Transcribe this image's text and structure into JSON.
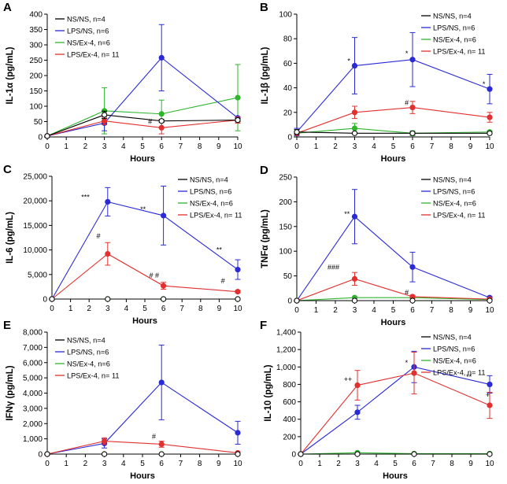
{
  "figure": {
    "x_values": [
      0,
      3,
      6,
      10
    ],
    "series_colors": [
      "#000000",
      "#2a2ad6",
      "#2db52d",
      "#e23030"
    ],
    "marker_fills": [
      "#ffffff",
      "#2a2ad6",
      "#2db52d",
      "#e23030"
    ]
  },
  "chart_data": [
    {
      "type": "line",
      "panel": "A",
      "ylabel": "IL-1α (pg/mL)",
      "xlabel": "Hours",
      "ylim": [
        0,
        400
      ],
      "yticks": [
        0,
        50,
        100,
        150,
        200,
        250,
        300,
        350,
        400
      ],
      "ytick_labels": [
        "0",
        "50",
        "100",
        "150",
        "200",
        "250",
        "300",
        "350",
        "400"
      ],
      "xticks": [
        0,
        1,
        2,
        3,
        4,
        5,
        6,
        7,
        8,
        9,
        10
      ],
      "x": [
        0,
        3,
        6,
        10
      ],
      "series": [
        {
          "name": "NS/NS, n=4",
          "values": [
            3,
            72,
            52,
            55
          ],
          "err": [
            0,
            12,
            5,
            6
          ]
        },
        {
          "name": "LPS/NS, n=6",
          "values": [
            3,
            45,
            258,
            62
          ],
          "err": [
            0,
            25,
            108,
            0
          ]
        },
        {
          "name": "NS/Ex-4, n=6",
          "values": [
            3,
            85,
            75,
            128
          ],
          "err": [
            0,
            75,
            45,
            108
          ]
        },
        {
          "name": "LPS/Ex-4, n= 11",
          "values": [
            3,
            52,
            30,
            55
          ],
          "err": [
            0,
            12,
            20,
            10
          ]
        }
      ],
      "annotations": [
        {
          "text": "#",
          "x": 5.4,
          "y": 42
        }
      ]
    },
    {
      "type": "line",
      "panel": "B",
      "ylabel": "IL-1β (pg/mL)",
      "xlabel": "Hours",
      "ylim": [
        0,
        100
      ],
      "yticks": [
        0,
        20,
        40,
        60,
        80,
        100
      ],
      "ytick_labels": [
        "0",
        "20",
        "40",
        "60",
        "80",
        "100"
      ],
      "xticks": [
        0,
        1,
        2,
        3,
        4,
        5,
        6,
        7,
        8,
        9,
        10
      ],
      "x": [
        0,
        3,
        6,
        10
      ],
      "series": [
        {
          "name": "NS/NS, n=4",
          "values": [
            4,
            3,
            3,
            3
          ],
          "err": [
            2,
            0,
            1,
            0
          ]
        },
        {
          "name": "LPS/NS, n=6",
          "values": [
            4,
            58,
            63,
            39
          ],
          "err": [
            3,
            23,
            22,
            12
          ]
        },
        {
          "name": "NS/Ex-4, n=6",
          "values": [
            3,
            7,
            3,
            4
          ],
          "err": [
            0,
            4,
            2,
            1
          ]
        },
        {
          "name": "LPS/Ex-4, n= 11",
          "values": [
            3,
            20,
            24,
            16
          ],
          "err": [
            0,
            5,
            5,
            4
          ]
        }
      ],
      "annotations": [
        {
          "text": "*",
          "x": 2.7,
          "y": 60
        },
        {
          "text": "*",
          "x": 5.7,
          "y": 66
        },
        {
          "text": "*",
          "x": 9.7,
          "y": 41
        },
        {
          "text": "#",
          "x": 5.7,
          "y": 26
        }
      ]
    },
    {
      "type": "line",
      "panel": "C",
      "ylabel": "IL-6 (pg/mL)",
      "xlabel": "Hours",
      "ylim": [
        0,
        25000
      ],
      "yticks": [
        0,
        5000,
        10000,
        15000,
        20000,
        25000
      ],
      "ytick_labels": [
        "0",
        "5,000",
        "10,000",
        "15,000",
        "20,000",
        "25,000"
      ],
      "xticks": [
        0,
        1,
        2,
        3,
        4,
        5,
        6,
        7,
        8,
        9,
        10
      ],
      "x": [
        0,
        3,
        6,
        10
      ],
      "series": [
        {
          "name": "NS/NS, n=4",
          "values": [
            0,
            0,
            0,
            0
          ],
          "err": [
            0,
            0,
            0,
            0
          ]
        },
        {
          "name": "LPS/NS, n=6",
          "values": [
            0,
            19800,
            17000,
            6000
          ],
          "err": [
            0,
            2900,
            6000,
            2000
          ]
        },
        {
          "name": "NS/Ex-4, n=6",
          "values": [
            0,
            0,
            0,
            0
          ],
          "err": [
            0,
            0,
            0,
            0
          ]
        },
        {
          "name": "LPS/Ex-4, n= 11",
          "values": [
            0,
            9200,
            2700,
            1500
          ],
          "err": [
            0,
            2300,
            700,
            250
          ]
        }
      ],
      "annotations": [
        {
          "text": "***",
          "x": 1.8,
          "y": 20300
        },
        {
          "text": "**",
          "x": 4.9,
          "y": 17800
        },
        {
          "text": "**",
          "x": 9.0,
          "y": 9500
        },
        {
          "text": "#",
          "x": 2.5,
          "y": 12300
        },
        {
          "text": "# #",
          "x": 5.5,
          "y": 4300
        },
        {
          "text": "#",
          "x": 9.2,
          "y": 3200
        }
      ]
    },
    {
      "type": "line",
      "panel": "D",
      "ylabel": "TNFα (pg/mL)",
      "xlabel": "Hours",
      "ylim": [
        0,
        250
      ],
      "yticks": [
        0,
        50,
        100,
        150,
        200,
        250
      ],
      "ytick_labels": [
        "0",
        "50",
        "100",
        "150",
        "200",
        "250"
      ],
      "xticks": [
        0,
        1,
        2,
        3,
        4,
        5,
        6,
        7,
        8,
        9,
        10
      ],
      "x": [
        0,
        3,
        6,
        10
      ],
      "series": [
        {
          "name": "NS/NS, n=4",
          "values": [
            0,
            0,
            0,
            0
          ],
          "err": [
            0,
            0,
            0,
            0
          ]
        },
        {
          "name": "LPS/NS, n=6",
          "values": [
            0,
            170,
            68,
            6
          ],
          "err": [
            0,
            55,
            30,
            2
          ]
        },
        {
          "name": "NS/Ex-4, n=6",
          "values": [
            0,
            6,
            6,
            2
          ],
          "err": [
            0,
            2,
            2,
            1
          ]
        },
        {
          "name": "LPS/Ex-4, n= 11",
          "values": [
            0,
            44,
            8,
            3
          ],
          "err": [
            0,
            13,
            3,
            1
          ]
        }
      ],
      "annotations": [
        {
          "text": "**",
          "x": 2.6,
          "y": 170
        },
        {
          "text": "###",
          "x": 1.9,
          "y": 63
        },
        {
          "text": "#",
          "x": 5.7,
          "y": 12
        }
      ]
    },
    {
      "type": "line",
      "panel": "E",
      "ylabel": "IFNγ (pg/mL)",
      "xlabel": "Hours",
      "ylim": [
        0,
        8000
      ],
      "yticks": [
        0,
        1000,
        2000,
        3000,
        4000,
        5000,
        6000,
        7000,
        8000
      ],
      "ytick_labels": [
        "0",
        "1,000",
        "2,000",
        "3,000",
        "4,000",
        "5,000",
        "6,000",
        "7,000",
        "8,000"
      ],
      "xticks": [
        0,
        1,
        2,
        3,
        4,
        5,
        6,
        7,
        8,
        9,
        10
      ],
      "x": [
        0,
        3,
        6,
        10
      ],
      "series": [
        {
          "name": "NS/NS, n=4",
          "values": [
            0,
            0,
            0,
            0
          ],
          "err": [
            0,
            0,
            0,
            0
          ]
        },
        {
          "name": "LPS/NS, n=6",
          "values": [
            0,
            700,
            4700,
            1400
          ],
          "err": [
            0,
            300,
            2450,
            750
          ]
        },
        {
          "name": "NS/Ex-4, n=6",
          "values": [
            0,
            0,
            0,
            0
          ],
          "err": [
            0,
            0,
            0,
            0
          ]
        },
        {
          "name": "LPS/Ex-4, n= 11",
          "values": [
            0,
            850,
            650,
            80
          ],
          "err": [
            0,
            220,
            200,
            40
          ]
        }
      ],
      "annotations": [
        {
          "text": "#",
          "x": 5.6,
          "y": 1000
        }
      ]
    },
    {
      "type": "line",
      "panel": "F",
      "ylabel": "IL-10 (pg/mL)",
      "xlabel": "Hours",
      "ylim": [
        0,
        1400
      ],
      "yticks": [
        0,
        200,
        400,
        600,
        800,
        1000,
        1200,
        1400
      ],
      "ytick_labels": [
        "0",
        "200",
        "400",
        "600",
        "800",
        "1,000",
        "1,200",
        "1,400"
      ],
      "xticks": [
        0,
        1,
        2,
        3,
        4,
        5,
        6,
        7,
        8,
        9,
        10
      ],
      "x": [
        0,
        3,
        6,
        10
      ],
      "series": [
        {
          "name": "NS/NS, n=4",
          "values": [
            0,
            0,
            0,
            0
          ],
          "err": [
            0,
            0,
            0,
            0
          ]
        },
        {
          "name": "LPS/NS, n=6",
          "values": [
            0,
            480,
            1000,
            800
          ],
          "err": [
            0,
            80,
            180,
            100
          ]
        },
        {
          "name": "NS/Ex-4, n=6",
          "values": [
            0,
            15,
            5,
            5
          ],
          "err": [
            0,
            5,
            2,
            2
          ]
        },
        {
          "name": "LPS/Ex-4, n= 11",
          "values": [
            0,
            790,
            930,
            560
          ],
          "err": [
            0,
            170,
            240,
            150
          ]
        }
      ],
      "annotations": [
        {
          "text": "++",
          "x": 2.5,
          "y": 830
        },
        {
          "text": "*",
          "x": 5.6,
          "y": 1020
        },
        {
          "text": "**",
          "x": 8.9,
          "y": 860
        },
        {
          "text": "+",
          "x": 9.9,
          "y": 650
        }
      ]
    }
  ]
}
